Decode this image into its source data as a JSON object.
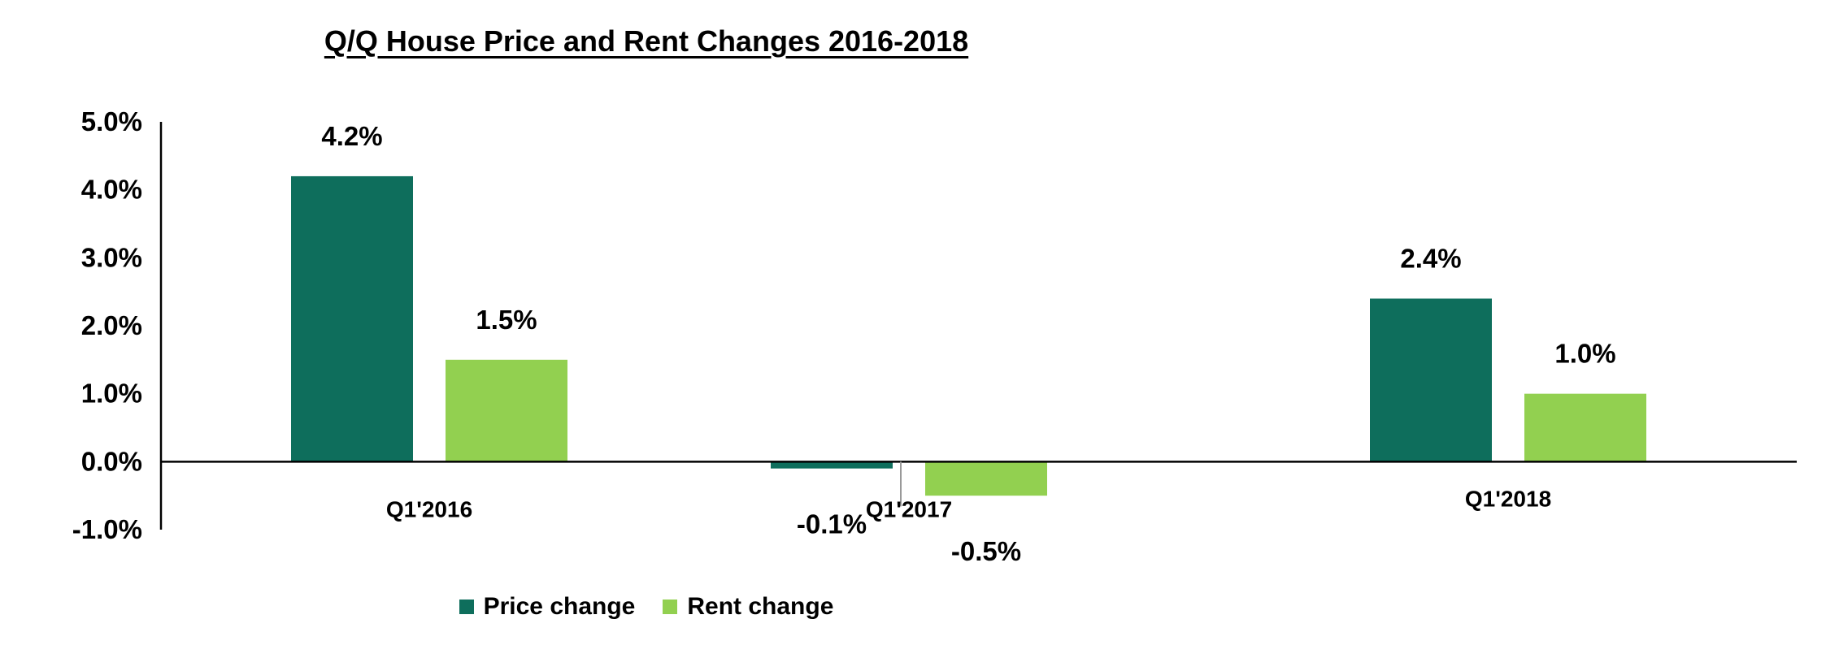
{
  "chart_data": {
    "type": "bar",
    "title": "Q/Q House Price and Rent Changes 2016-2018",
    "categories": [
      "Q1'2016",
      "Q1'2017",
      "Q1'2018"
    ],
    "series": [
      {
        "name": "Price change",
        "values": [
          4.2,
          -0.1,
          2.4
        ],
        "labels": [
          "4.2%",
          "-0.1%",
          "2.4%"
        ],
        "color": "#0e6e5c"
      },
      {
        "name": "Rent change",
        "values": [
          1.5,
          -0.5,
          1.0
        ],
        "labels": [
          "1.5%",
          "-0.5%",
          "1.0%"
        ],
        "color": "#92d050"
      }
    ],
    "yticks": [
      "5.0%",
      "4.0%",
      "3.0%",
      "2.0%",
      "1.0%",
      "0.0%",
      "-1.0%"
    ],
    "ylim": [
      -1.0,
      5.0
    ],
    "grid": false,
    "legend": "bottom"
  }
}
